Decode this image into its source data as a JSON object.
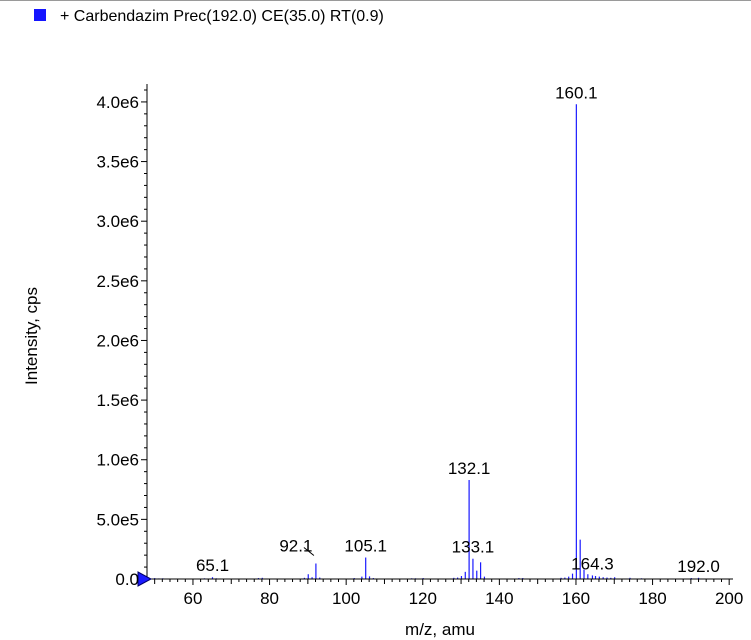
{
  "legend": {
    "label": "+ Carbendazim Prec(192.0) CE(35.0) RT(0.9)",
    "swatch_color": "#1515ff"
  },
  "chart_data": {
    "type": "bar",
    "title": "",
    "xlabel": "m/z, amu",
    "ylabel": "Intensity, cps",
    "xlim": [
      48,
      201
    ],
    "ylim": [
      0,
      4100000
    ],
    "x_ticks": [
      60,
      80,
      100,
      120,
      140,
      160,
      180,
      200
    ],
    "x_tick_labels": [
      "60",
      "80",
      "100",
      "120",
      "140",
      "160",
      "180",
      "200"
    ],
    "y_ticks": [
      0,
      500000,
      1000000,
      1500000,
      2000000,
      2500000,
      3000000,
      3500000,
      4000000
    ],
    "y_tick_labels": [
      "0.0",
      "5.0e5",
      "1.0e6",
      "1.5e6",
      "2.0e6",
      "2.5e6",
      "3.0e6",
      "3.5e6",
      "4.0e6"
    ],
    "series_color": "#1a1aff",
    "series": [
      {
        "x": [
          50.0,
          51.1,
          52.1,
          63.0,
          65.1,
          66.1,
          77.1,
          78.1,
          89.1,
          90.1,
          91.1,
          92.1,
          93.1,
          102.1,
          104.1,
          105.1,
          106.1,
          107.1,
          117.1,
          118.1,
          120.1,
          128.1,
          129.1,
          130.1,
          131.1,
          132.1,
          133.1,
          134.1,
          135.1,
          136.1,
          145.1,
          146.1,
          156.1,
          157.1,
          158.1,
          159.1,
          160.1,
          161.1,
          162.1,
          163.1,
          164.3,
          165.1,
          166.1,
          167.1,
          168.1,
          169.1,
          170.1,
          174.1,
          177.1,
          190.1,
          192.0
        ],
        "values": [
          8000,
          5000,
          6000,
          6000,
          15000,
          6000,
          8000,
          10000,
          10000,
          40000,
          15000,
          130000,
          12000,
          8000,
          20000,
          180000,
          22000,
          8000,
          6000,
          6000,
          8000,
          10000,
          12000,
          25000,
          60000,
          830000,
          170000,
          70000,
          140000,
          20000,
          8000,
          8000,
          10000,
          12000,
          20000,
          45000,
          3980000,
          330000,
          80000,
          40000,
          30000,
          25000,
          20000,
          15000,
          12000,
          10000,
          15000,
          10000,
          6000,
          8000,
          10000
        ]
      }
    ],
    "annotations": [
      {
        "text": "65.1",
        "x": 65.1,
        "y": 15000
      },
      {
        "text": "92.1",
        "x": 92.1,
        "y": 130000,
        "leader": true
      },
      {
        "text": "105.1",
        "x": 105.1,
        "y": 180000
      },
      {
        "text": "132.1",
        "x": 132.1,
        "y": 830000
      },
      {
        "text": "133.1",
        "x": 133.1,
        "y": 170000
      },
      {
        "text": "160.1",
        "x": 160.1,
        "y": 3980000
      },
      {
        "text": "164.3",
        "x": 164.3,
        "y": 30000
      },
      {
        "text": "192.0",
        "x": 192.0,
        "y": 10000
      }
    ]
  }
}
